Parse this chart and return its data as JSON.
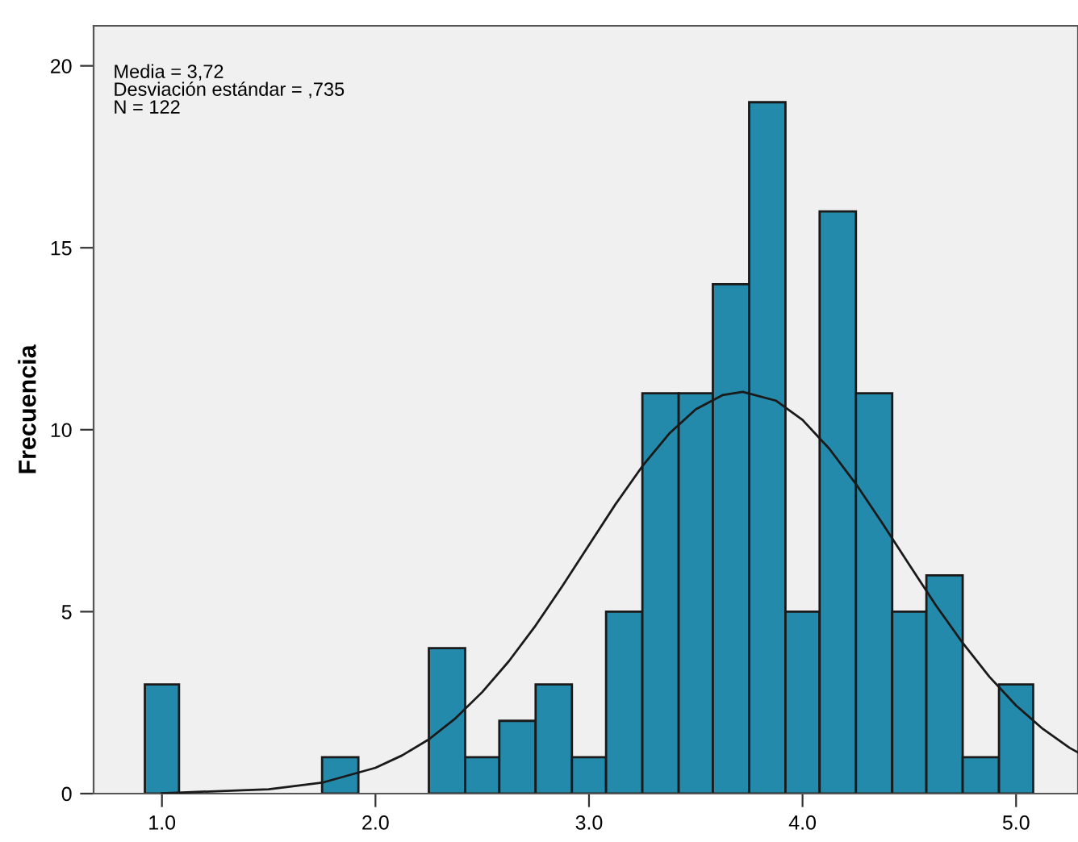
{
  "chart_data": {
    "type": "histogram",
    "ylabel": "Frecuencia",
    "bins": [
      0.92,
      1.08,
      1.75,
      1.92,
      2.25,
      2.42,
      2.58,
      2.75,
      2.92,
      3.08,
      3.25,
      3.42,
      3.58,
      3.75,
      3.92,
      4.08,
      4.25,
      4.42,
      4.58,
      4.75,
      4.92,
      5.08
    ],
    "values": [
      3,
      0,
      1,
      0,
      4,
      1,
      2,
      3,
      1,
      5,
      11,
      11,
      14,
      19,
      5,
      16,
      11,
      5,
      6,
      1,
      3
    ],
    "color": "#248aab",
    "series": [
      {
        "type": "line",
        "color": "#1a1a1a",
        "x": [
          1.0,
          1.5,
          1.75,
          2.0,
          2.125,
          2.25,
          2.375,
          2.5,
          2.625,
          2.75,
          2.875,
          3.0,
          3.125,
          3.25,
          3.375,
          3.5,
          3.625,
          3.72,
          3.875,
          4.0,
          4.125,
          4.25,
          4.375,
          4.5,
          4.625,
          4.75,
          4.875,
          5.0,
          5.125,
          5.25,
          5.29
        ],
        "values": [
          0.01,
          0.12,
          0.3,
          0.71,
          1.05,
          1.49,
          2.07,
          2.79,
          3.64,
          4.62,
          5.7,
          6.83,
          7.96,
          9.0,
          9.89,
          10.56,
          10.95,
          11.04,
          10.8,
          10.27,
          9.48,
          8.51,
          7.42,
          6.29,
          5.17,
          4.14,
          3.21,
          2.42,
          1.78,
          1.26,
          1.13
        ]
      }
    ],
    "annotations": [
      "Media = 3,72",
      "Desviación estándar = ,735",
      "N = 122"
    ],
    "xlim": [
      0.68,
      5.29
    ],
    "ylim": [
      0,
      21.1
    ],
    "xticks": [
      {
        "value": 1,
        "label": "1.0"
      },
      {
        "value": 2,
        "label": "2.0"
      },
      {
        "value": 3,
        "label": "3.0"
      },
      {
        "value": 4,
        "label": "4.0"
      },
      {
        "value": 5,
        "label": "5.0"
      }
    ],
    "yticks": [
      0,
      5,
      10,
      15,
      20
    ],
    "grid": false,
    "legend": false
  }
}
